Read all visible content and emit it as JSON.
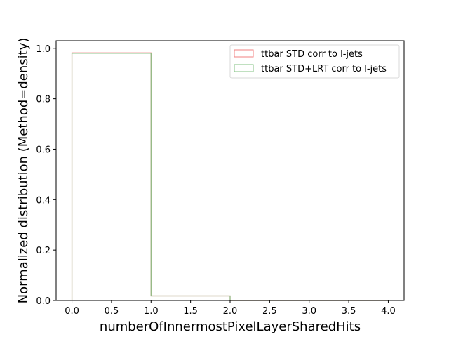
{
  "chart_data": {
    "type": "bar",
    "subtype": "step-histogram",
    "title": "",
    "xlabel": "numberOfInnermostPixelLayerSharedHits",
    "ylabel": "Normalized distribution (Method=density)",
    "xlim": [
      -0.2,
      4.2
    ],
    "ylim": [
      0,
      1.03
    ],
    "xticks": [
      0.0,
      0.5,
      1.0,
      1.5,
      2.0,
      2.5,
      3.0,
      3.5,
      4.0
    ],
    "xtick_labels": [
      "0.0",
      "0.5",
      "1.0",
      "1.5",
      "2.0",
      "2.5",
      "3.0",
      "3.5",
      "4.0"
    ],
    "yticks": [
      0.0,
      0.2,
      0.4,
      0.6,
      0.8,
      1.0
    ],
    "ytick_labels": [
      "0.0",
      "0.2",
      "0.4",
      "0.6",
      "0.8",
      "1.0"
    ],
    "bin_edges": [
      0,
      1,
      2,
      3,
      4
    ],
    "series": [
      {
        "name": "ttbar STD corr to l-jets",
        "color": "#f08080",
        "values": [
          0.982,
          0.018,
          0.0,
          0.0
        ]
      },
      {
        "name": "ttbar STD+LRT corr to l-jets",
        "color": "#80c080",
        "values": [
          0.98,
          0.018,
          0.0,
          0.0
        ]
      }
    ],
    "overlap_color": "#b8974a",
    "grid": false,
    "legend_position": "top-right"
  }
}
